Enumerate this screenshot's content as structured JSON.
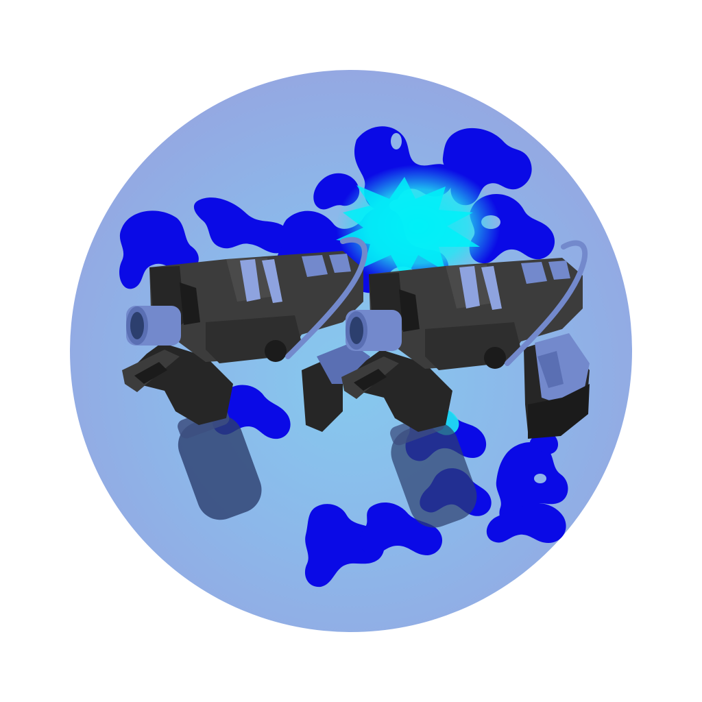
{
  "icon": {
    "subject": "dual-pistols-icon",
    "count": 2,
    "colors": {
      "page_background": "#ffffff",
      "badge_outer": "#94a8e2",
      "badge_inner": "#86c9ee",
      "smoke": "#0a0ae6",
      "glow": "#00f0f8",
      "gun_body": "#3c3c3c",
      "gun_dark": "#262626",
      "gun_shadow": "#1b1b1b",
      "accent": "#7389cc",
      "accent_light": "#8ea3df",
      "canister": "#2c3f6e"
    }
  }
}
